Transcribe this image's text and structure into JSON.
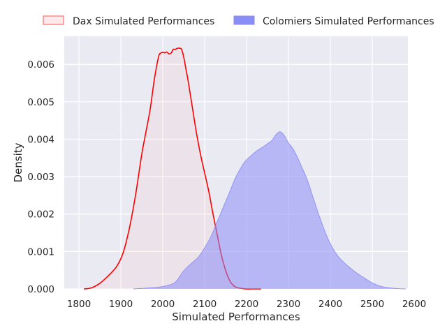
{
  "chart_data": {
    "type": "area",
    "title": "",
    "xlabel": "Simulated Performances",
    "ylabel": "Density",
    "xlim": [
      1765,
      2585
    ],
    "ylim": [
      0,
      0.00675
    ],
    "xticks": [
      1800,
      1900,
      2000,
      2100,
      2200,
      2300,
      2400,
      2500,
      2600
    ],
    "yticks": [
      0.0,
      0.001,
      0.002,
      0.003,
      0.004,
      0.005,
      0.006
    ],
    "xtick_labels": [
      "1800",
      "1900",
      "2000",
      "2100",
      "2200",
      "2300",
      "2400",
      "2500",
      "2600"
    ],
    "ytick_labels": [
      "0.000",
      "0.001",
      "0.002",
      "0.003",
      "0.004",
      "0.005",
      "0.006"
    ],
    "grid": true,
    "legend_position": "top, outside plot area",
    "series": [
      {
        "name": "Dax Simulated Performances",
        "color": "#ff0000",
        "fill_color": "#ffb0b0",
        "x": [
          1812,
          1830,
          1850,
          1870,
          1890,
          1905,
          1920,
          1935,
          1950,
          1960,
          1970,
          1980,
          1990,
          1995,
          2000,
          2005,
          2010,
          2015,
          2020,
          2025,
          2030,
          2035,
          2040,
          2045,
          2050,
          2055,
          2060,
          2070,
          2080,
          2090,
          2100,
          2110,
          2120,
          2130,
          2140,
          2150,
          2160,
          2170,
          2180,
          2190,
          2200,
          2210,
          2220,
          2235
        ],
        "y": [
          0.0,
          3e-05,
          0.00015,
          0.00035,
          0.0006,
          0.00095,
          0.0016,
          0.0025,
          0.0036,
          0.0042,
          0.0048,
          0.0056,
          0.0062,
          0.0063,
          0.00632,
          0.00631,
          0.00633,
          0.00628,
          0.0063,
          0.0064,
          0.0064,
          0.00643,
          0.00643,
          0.0064,
          0.0062,
          0.0059,
          0.0056,
          0.0049,
          0.0042,
          0.0036,
          0.0031,
          0.0026,
          0.002,
          0.00145,
          0.0009,
          0.0005,
          0.00022,
          8e-05,
          3e-05,
          1e-05,
          0.0,
          0.0,
          0.0,
          0.0
        ]
      },
      {
        "name": "Colomiers Simulated Performances",
        "color": "#8a8df5",
        "fill_color": "#8a8df5",
        "x": [
          1930,
          1960,
          1990,
          2010,
          2030,
          2050,
          2070,
          2085,
          2100,
          2115,
          2130,
          2145,
          2160,
          2175,
          2190,
          2200,
          2210,
          2220,
          2230,
          2240,
          2250,
          2260,
          2270,
          2280,
          2290,
          2300,
          2310,
          2320,
          2330,
          2340,
          2350,
          2360,
          2375,
          2390,
          2405,
          2420,
          2440,
          2460,
          2480,
          2500,
          2520,
          2540,
          2560,
          2580
        ],
        "y": [
          0.0,
          2e-05,
          5e-05,
          9e-05,
          0.00018,
          0.00048,
          0.0007,
          0.00085,
          0.0011,
          0.0014,
          0.0018,
          0.0022,
          0.0026,
          0.003,
          0.0033,
          0.00345,
          0.00355,
          0.00365,
          0.00373,
          0.0038,
          0.00388,
          0.00396,
          0.00412,
          0.0042,
          0.0041,
          0.0039,
          0.00376,
          0.00355,
          0.0033,
          0.00305,
          0.00275,
          0.0024,
          0.0019,
          0.00145,
          0.0011,
          0.00085,
          0.00063,
          0.00045,
          0.0003,
          0.00016,
          7e-05,
          3e-05,
          1e-05,
          0.0
        ]
      }
    ]
  }
}
